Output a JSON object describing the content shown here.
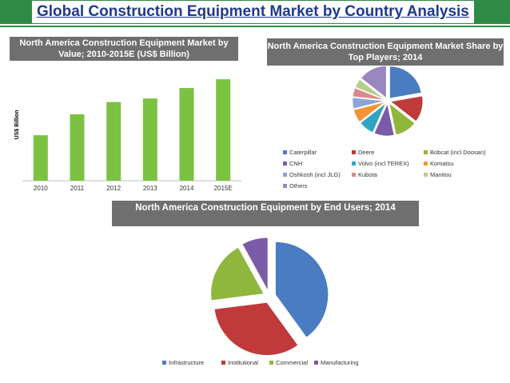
{
  "header": {
    "title": "Global Construction Equipment Market by Country Analysis"
  },
  "colors": {
    "banner": "#2f8a46",
    "title_text": "#1f3a8a",
    "panel_title_bg": "#6f6f6f",
    "bar": "#7cc242"
  },
  "chart_data": [
    {
      "type": "bar",
      "title": "North America Construction Equipment Market by Value; 2010-2015E (US$ Billion)",
      "ylabel": "US$ Billion",
      "xlabel": "",
      "categories": [
        "2010",
        "2011",
        "2012",
        "2013",
        "2014",
        "2015E"
      ],
      "values": [
        26,
        38,
        45,
        47,
        53,
        58
      ],
      "ylim": [
        0,
        64
      ],
      "grid": false,
      "legend": "none"
    },
    {
      "type": "pie",
      "title": "North America Construction Equipment Market Share by Top Players; 2014",
      "legend_position": "bottom",
      "slices": [
        {
          "label": "Caterpillar",
          "value": 20,
          "color": "#4a7cc2"
        },
        {
          "label": "Deere",
          "value": 12,
          "color": "#c0393b"
        },
        {
          "label": "Bobcat (incl Doosan)",
          "value": 10,
          "color": "#8fb63d"
        },
        {
          "label": "CNH",
          "value": 9,
          "color": "#7a5ba8"
        },
        {
          "label": "Volvo (incl TEREX)",
          "value": 7,
          "color": "#33a3c4"
        },
        {
          "label": "Komatsu",
          "value": 6,
          "color": "#f29433"
        },
        {
          "label": "Oshkosh (incl JLG)",
          "value": 5,
          "color": "#8aa6d8"
        },
        {
          "label": "Kubota",
          "value": 4,
          "color": "#da8a8a"
        },
        {
          "label": "Manitou",
          "value": 4,
          "color": "#b6d08c"
        },
        {
          "label": "Others",
          "value": 13,
          "color": "#9a87c0"
        }
      ]
    },
    {
      "type": "pie",
      "title": "North America Construction Equipment by End Users; 2014",
      "legend_position": "bottom",
      "slices": [
        {
          "label": "Infrastructure",
          "value": 40,
          "color": "#4a7cc2"
        },
        {
          "label": "Institutional",
          "value": 33,
          "color": "#c0393b"
        },
        {
          "label": "Commercial",
          "value": 19,
          "color": "#8fb63d"
        },
        {
          "label": "Manufacturing",
          "value": 8,
          "color": "#7a5ba8"
        }
      ]
    }
  ]
}
